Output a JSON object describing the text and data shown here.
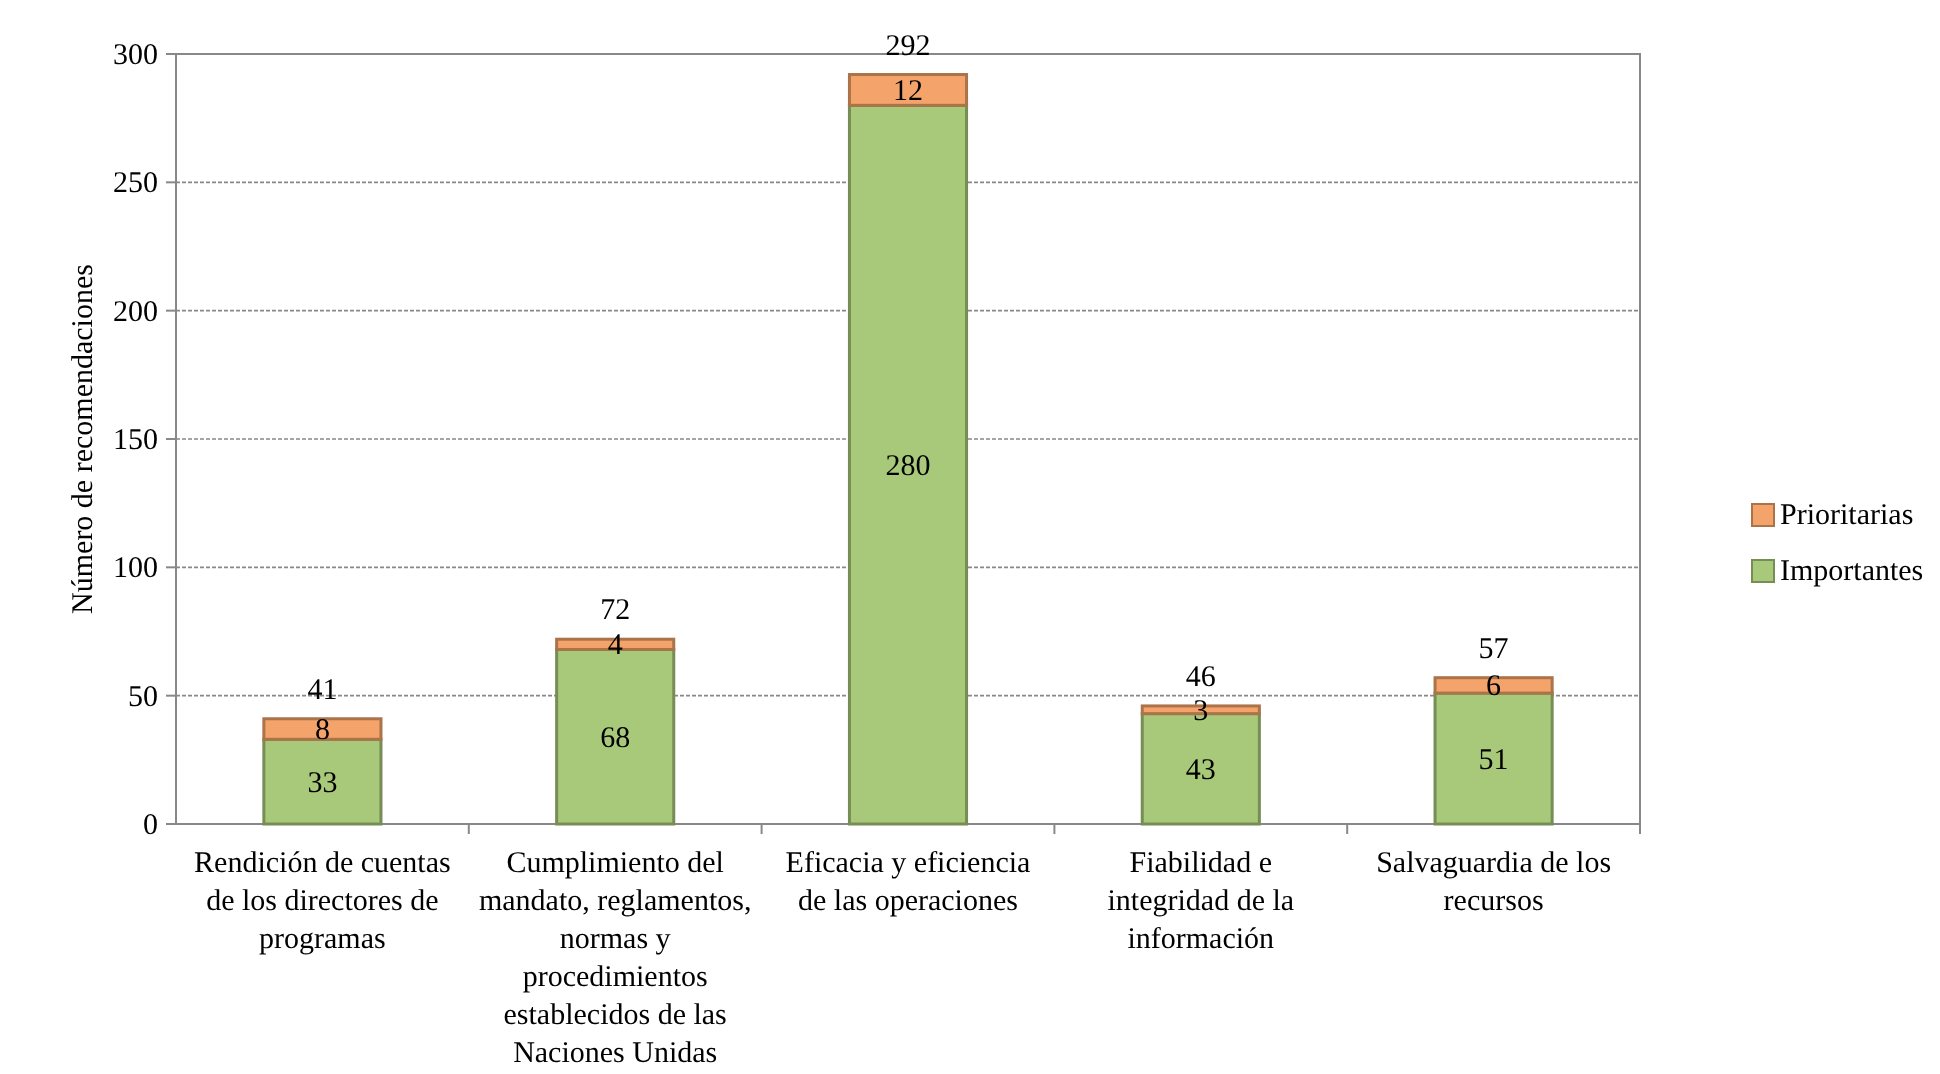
{
  "chart_data": {
    "type": "bar",
    "stacked": true,
    "ylabel": "Número de recomendaciones",
    "categories": [
      "Rendición de cuentas de los directores de programas",
      "Cumplimiento del mandato, reglamentos, normas y procedimientos establecidos de las Naciones Unidas",
      "Eficacia y eficiencia de las operaciones",
      "Fiabilidad e integridad de la información",
      "Salvaguardia de los recursos"
    ],
    "series": [
      {
        "name": "Importantes",
        "color": "#a9c97a",
        "values": [
          33,
          68,
          280,
          43,
          51
        ]
      },
      {
        "name": "Prioritarias",
        "color": "#f4a46a",
        "values": [
          8,
          4,
          12,
          3,
          6
        ]
      }
    ],
    "totals": [
      "41",
      "72",
      "292",
      "46",
      "57"
    ],
    "data_labels": true,
    "ylim": [
      0,
      300
    ],
    "yticks": [
      0,
      50,
      100,
      150,
      200,
      250,
      300
    ],
    "grid": "y",
    "legend": "right"
  }
}
